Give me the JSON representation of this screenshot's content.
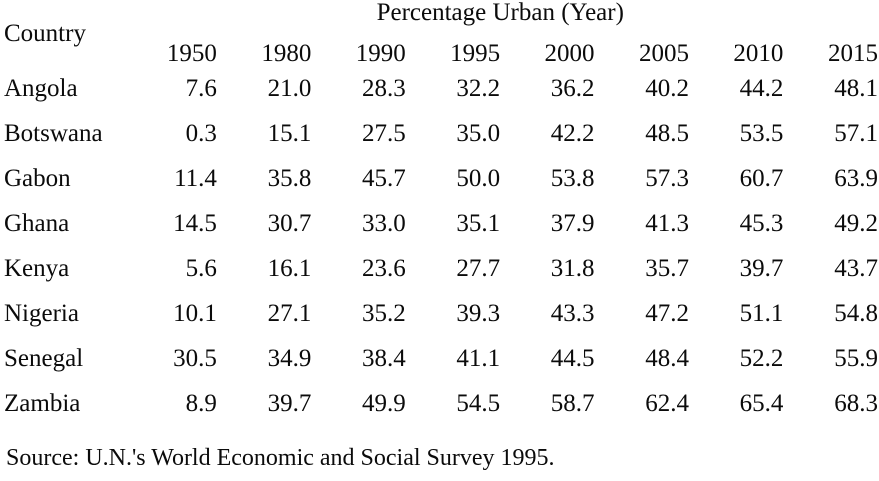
{
  "chart_data": {
    "type": "table",
    "title": "Percentage Urban (Year)",
    "row_header": "Country",
    "columns": [
      "1950",
      "1980",
      "1990",
      "1995",
      "2000",
      "2005",
      "2010",
      "2015"
    ],
    "rows": [
      {
        "country": "Angola",
        "values": [
          7.6,
          21.0,
          28.3,
          32.2,
          36.2,
          40.2,
          44.2,
          48.1
        ]
      },
      {
        "country": "Botswana",
        "values": [
          0.3,
          15.1,
          27.5,
          35.0,
          42.2,
          48.5,
          53.5,
          57.1
        ]
      },
      {
        "country": "Gabon",
        "values": [
          11.4,
          35.8,
          45.7,
          50.0,
          53.8,
          57.3,
          60.7,
          63.9
        ]
      },
      {
        "country": "Ghana",
        "values": [
          14.5,
          30.7,
          33.0,
          35.1,
          37.9,
          41.3,
          45.3,
          49.2
        ]
      },
      {
        "country": "Kenya",
        "values": [
          5.6,
          16.1,
          23.6,
          27.7,
          31.8,
          35.7,
          39.7,
          43.7
        ]
      },
      {
        "country": "Nigeria",
        "values": [
          10.1,
          27.1,
          35.2,
          39.3,
          43.3,
          47.2,
          51.1,
          54.8
        ]
      },
      {
        "country": "Senegal",
        "values": [
          30.5,
          34.9,
          38.4,
          41.1,
          44.5,
          48.4,
          52.2,
          55.9
        ]
      },
      {
        "country": "Zambia",
        "values": [
          8.9,
          39.7,
          49.9,
          54.5,
          58.7,
          62.4,
          65.4,
          68.3
        ]
      }
    ],
    "value_decimals": 1,
    "source": "Source: U.N.'s World Economic and Social Survey 1995.",
    "layout": {
      "grid": false,
      "alignment": "values-right-aligned"
    },
    "colors": {
      "text": "#0b0b0b",
      "background": "#ffffff"
    }
  }
}
